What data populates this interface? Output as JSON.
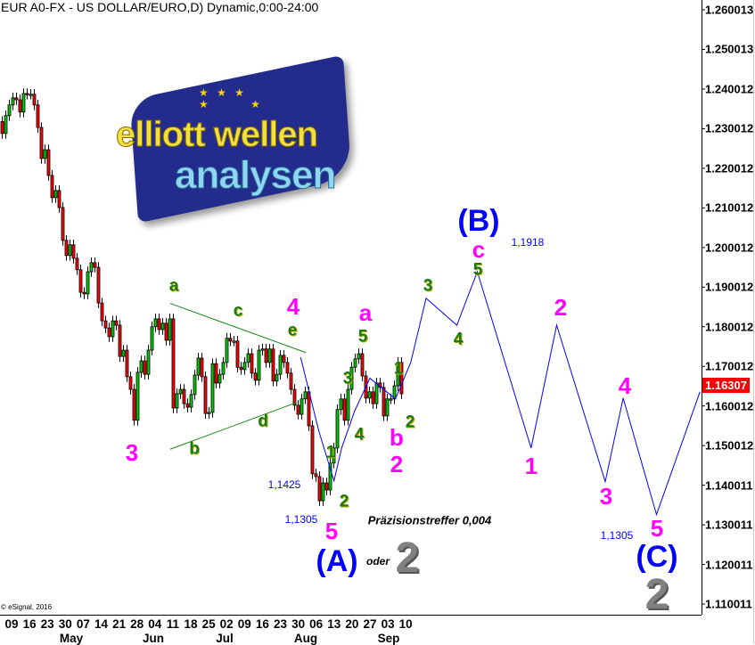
{
  "header": {
    "title": "EUR A0-FX - US DOLLAR/EURO,D) Dynamic,0:00-24:00"
  },
  "copyright": "© eSignal, 2016",
  "logo": {
    "line1": "elliott wellen",
    "line2": "analysen"
  },
  "colors": {
    "up": "#00cc00",
    "down": "#ff0000",
    "wave_line": "#0000ff",
    "triangle": "#1a8a1a",
    "wave_magenta": "#ff00ff",
    "wave_green": "#1a7a10",
    "last_price_bg": "#ff0000"
  },
  "chart_data": {
    "type": "candlestick",
    "title": "EUR A0-FX - US DOLLAR/EURO,D) Dynamic,0:00-24:00",
    "ylim": [
      1.106,
      1.262
    ],
    "y_ticks": [
      "1.260013",
      "1.250013",
      "1.240012",
      "1.230012",
      "1.220012",
      "1.210012",
      "1.200012",
      "1.190012",
      "1.180012",
      "1.170012",
      "1.160012",
      "1.150012",
      "1.140011",
      "1.130011",
      "1.120011",
      "1.110011"
    ],
    "x_tick_labels": [
      "09",
      "16",
      "23",
      "30",
      "07",
      "14",
      "21",
      "28",
      "04",
      "11",
      "18",
      "25",
      "02",
      "09",
      "16",
      "23",
      "30",
      "06",
      "13",
      "20",
      "27",
      "03",
      "10"
    ],
    "month_labels": [
      "May",
      "Jun",
      "Jul",
      "Aug",
      "Sep"
    ],
    "last_price": "1.16307",
    "grid": false,
    "closes": [
      1.2288,
      1.2333,
      1.236,
      1.2378,
      1.2373,
      1.2342,
      1.2389,
      1.2387,
      1.2387,
      1.236,
      1.2303,
      1.2225,
      1.2247,
      1.2182,
      1.2126,
      1.2144,
      1.2101,
      1.2018,
      1.198,
      1.2007,
      1.1973,
      1.1944,
      1.1887,
      1.1883,
      1.1939,
      1.1962,
      1.195,
      1.186,
      1.1815,
      1.1797,
      1.1775,
      1.1815,
      1.1804,
      1.1725,
      1.1741,
      1.1674,
      1.1642,
      1.1564,
      1.1685,
      1.1714,
      1.168,
      1.1741,
      1.18,
      1.182,
      1.1793,
      1.1809,
      1.1766,
      1.182,
      1.1595,
      1.1631,
      1.1642,
      1.1606,
      1.1597,
      1.1629,
      1.1678,
      1.1721,
      1.1674,
      1.1581,
      1.1584,
      1.1707,
      1.1658,
      1.168,
      1.171,
      1.1771,
      1.1764,
      1.1764,
      1.1698,
      1.1692,
      1.171,
      1.1732,
      1.1683,
      1.1665,
      1.1741,
      1.1744,
      1.171,
      1.1744,
      1.1663,
      1.168,
      1.1728,
      1.171,
      1.1683,
      1.1642,
      1.1602,
      1.1579,
      1.1618,
      1.1636,
      1.155,
      1.1429,
      1.1422,
      1.1361,
      1.1406,
      1.1388,
      1.1456,
      1.1494,
      1.1591,
      1.1618,
      1.1564,
      1.1642,
      1.1698,
      1.1719,
      1.1732,
      1.1676,
      1.162,
      1.1636,
      1.1606,
      1.1658,
      1.1647,
      1.1575,
      1.1618,
      1.1618,
      1.1651,
      1.171,
      1.1631
    ],
    "wave_path": [
      {
        "date": "2018-08-01",
        "price": 1.1723
      },
      {
        "date": "2018-08-08",
        "price": 1.1539
      },
      {
        "date": "2018-08-14",
        "price": 1.1411
      },
      {
        "date": "2018-08-17",
        "price": 1.1494
      },
      {
        "date": "2018-08-22",
        "price": 1.1586
      },
      {
        "date": "2018-08-28",
        "price": 1.167
      },
      {
        "date": "2018-09-07",
        "price": 1.1618
      },
      {
        "date": "2018-09-13",
        "price": 1.171
      },
      {
        "date": "2018-09-19",
        "price": 1.1872
      },
      {
        "date": "2018-10-01",
        "price": 1.1804
      },
      {
        "date": "2018-10-09",
        "price": 1.1939
      },
      {
        "date": "2018-10-30",
        "price": 1.1494
      },
      {
        "date": "2018-11-09",
        "price": 1.1804
      },
      {
        "date": "2018-11-28",
        "price": 1.1409
      },
      {
        "date": "2018-12-05",
        "price": 1.162
      },
      {
        "date": "2018-12-18",
        "price": 1.1326
      },
      {
        "date": "2019-01-04",
        "price": 1.1636
      }
    ],
    "triangle_lines": [
      {
        "from": {
          "date": "2018-06-11",
          "price": 1.1859
        },
        "to": {
          "date": "2018-08-03",
          "price": 1.1735
        }
      },
      {
        "from": {
          "date": "2018-06-11",
          "price": 1.1491
        },
        "to": {
          "date": "2018-07-30",
          "price": 1.1608
        }
      }
    ]
  },
  "annotations": [
    {
      "text": "3"
    },
    {
      "text": "a"
    },
    {
      "text": "b"
    },
    {
      "text": "c"
    },
    {
      "text": "d"
    },
    {
      "text": "e"
    },
    {
      "text": "4"
    },
    {
      "text": "1"
    },
    {
      "text": "2"
    },
    {
      "text": "3"
    },
    {
      "text": "4"
    },
    {
      "text": "5"
    },
    {
      "text": "a"
    },
    {
      "text": "1"
    },
    {
      "text": "2"
    },
    {
      "text": "b"
    },
    {
      "text": "2"
    },
    {
      "text": "5"
    },
    {
      "text": "3"
    },
    {
      "text": "4"
    },
    {
      "text": "5"
    },
    {
      "text": "c"
    },
    {
      "text": "(B)"
    },
    {
      "text": "1,1918"
    },
    {
      "text": "2"
    },
    {
      "text": "1"
    },
    {
      "text": "4"
    },
    {
      "text": "3"
    },
    {
      "text": "5"
    },
    {
      "text": "1,1305"
    },
    {
      "text": "(C)"
    },
    {
      "text": "2"
    },
    {
      "text": "(A)"
    },
    {
      "text": "oder"
    },
    {
      "text": "2"
    },
    {
      "text": "1,1425"
    },
    {
      "text": "1,1305"
    },
    {
      "text": "Präzisionstreffer 0,004"
    }
  ]
}
